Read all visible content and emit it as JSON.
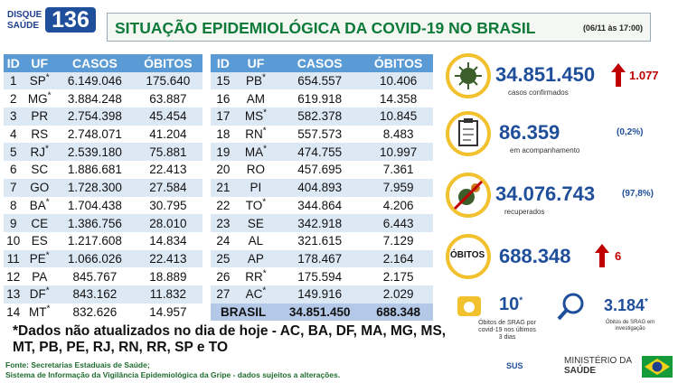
{
  "header": {
    "hotline_top": "DISQUE",
    "hotline_bottom": "SAÚDE",
    "hotline_number": "136",
    "title": "SITUAÇÃO EPIDEMIOLÓGICA DA COVID-19 NO BRASIL",
    "timestamp": "(06/11 às 17:00)"
  },
  "table": {
    "columns": [
      "ID",
      "UF",
      "CASOS",
      "ÓBITOS"
    ],
    "rows": [
      {
        "id": 1,
        "uf": "SP",
        "note": "*",
        "cases": "6.149.046",
        "deaths": "175.640"
      },
      {
        "id": 2,
        "uf": "MG",
        "note": "*",
        "cases": "3.884.248",
        "deaths": "63.887"
      },
      {
        "id": 3,
        "uf": "PR",
        "cases": "2.754.398",
        "deaths": "45.454"
      },
      {
        "id": 4,
        "uf": "RS",
        "cases": "2.748.071",
        "deaths": "41.204"
      },
      {
        "id": 5,
        "uf": "RJ",
        "note": "*",
        "cases": "2.539.180",
        "deaths": "75.881"
      },
      {
        "id": 6,
        "uf": "SC",
        "cases": "1.886.681",
        "deaths": "22.413"
      },
      {
        "id": 7,
        "uf": "GO",
        "cases": "1.728.300",
        "deaths": "27.584"
      },
      {
        "id": 8,
        "uf": "BA",
        "note": "*",
        "cases": "1.704.438",
        "deaths": "30.795"
      },
      {
        "id": 9,
        "uf": "CE",
        "cases": "1.386.756",
        "deaths": "28.010"
      },
      {
        "id": 10,
        "uf": "ES",
        "cases": "1.217.608",
        "deaths": "14.834"
      },
      {
        "id": 11,
        "uf": "PE",
        "note": "*",
        "cases": "1.066.026",
        "deaths": "22.413"
      },
      {
        "id": 12,
        "uf": "PA",
        "cases": "845.767",
        "deaths": "18.889"
      },
      {
        "id": 13,
        "uf": "DF",
        "note": "*",
        "cases": "843.162",
        "deaths": "11.832"
      },
      {
        "id": 14,
        "uf": "MT",
        "note": "*",
        "cases": "832.626",
        "deaths": "14.957"
      },
      {
        "id": 15,
        "uf": "PB",
        "note": "*",
        "cases": "654.557",
        "deaths": "10.406"
      },
      {
        "id": 16,
        "uf": "AM",
        "cases": "619.918",
        "deaths": "14.358"
      },
      {
        "id": 17,
        "uf": "MS",
        "note": "*",
        "cases": "582.378",
        "deaths": "10.845"
      },
      {
        "id": 18,
        "uf": "RN",
        "note": "*",
        "cases": "557.573",
        "deaths": "8.483"
      },
      {
        "id": 19,
        "uf": "MA",
        "note": "*",
        "cases": "474.755",
        "deaths": "10.997"
      },
      {
        "id": 20,
        "uf": "RO",
        "cases": "457.695",
        "deaths": "7.361"
      },
      {
        "id": 21,
        "uf": "PI",
        "cases": "404.893",
        "deaths": "7.959"
      },
      {
        "id": 22,
        "uf": "TO",
        "note": "*",
        "cases": "344.864",
        "deaths": "4.206"
      },
      {
        "id": 23,
        "uf": "SE",
        "cases": "342.918",
        "deaths": "6.443"
      },
      {
        "id": 24,
        "uf": "AL",
        "cases": "321.615",
        "deaths": "7.129"
      },
      {
        "id": 25,
        "uf": "AP",
        "cases": "178.467",
        "deaths": "2.164"
      },
      {
        "id": 26,
        "uf": "RR",
        "note": "*",
        "cases": "175.594",
        "deaths": "2.175"
      },
      {
        "id": 27,
        "uf": "AC",
        "note": "*",
        "cases": "149.916",
        "deaths": "2.029"
      }
    ],
    "total": {
      "label": "BRASIL",
      "cases": "34.851.450",
      "deaths": "688.348"
    }
  },
  "footnote": "*Dados não atualizados no dia de hoje - AC, BA, DF, MA, MG, MS, MT, PB, PE, RJ, RN, RR, SP e TO",
  "sources": [
    "Fonte: Secretarias Estaduais de Saúde;",
    "Sistema de Informação da Vigilância Epidemiológica da Gripe - dados sujeitos a alterações."
  ],
  "summary": {
    "confirmed": {
      "value": "34.851.450",
      "increase": "1.077",
      "label": "casos confirmados"
    },
    "monitoring": {
      "value": "86.359",
      "share": "(0,2%)",
      "label": "em acompanhamento"
    },
    "recovered": {
      "value": "34.076.743",
      "share": "(97,8%)",
      "label": "recuperados"
    },
    "deaths": {
      "heading": "ÓBITOS",
      "value": "688.348",
      "increase": "6"
    },
    "srag_recent": {
      "value": "10",
      "note": "*",
      "label": [
        "Óbitos de SRAG por",
        "covid-19 nos últimos",
        "3 dias"
      ]
    },
    "srag_investigation": {
      "value": "3.184",
      "note": "*",
      "label": [
        "Óbitos de SRAG em",
        "investigação"
      ]
    }
  },
  "footer": {
    "sus": "SUS",
    "ministry": [
      "MINISTÉRIO DA",
      "SAÚDE"
    ]
  }
}
